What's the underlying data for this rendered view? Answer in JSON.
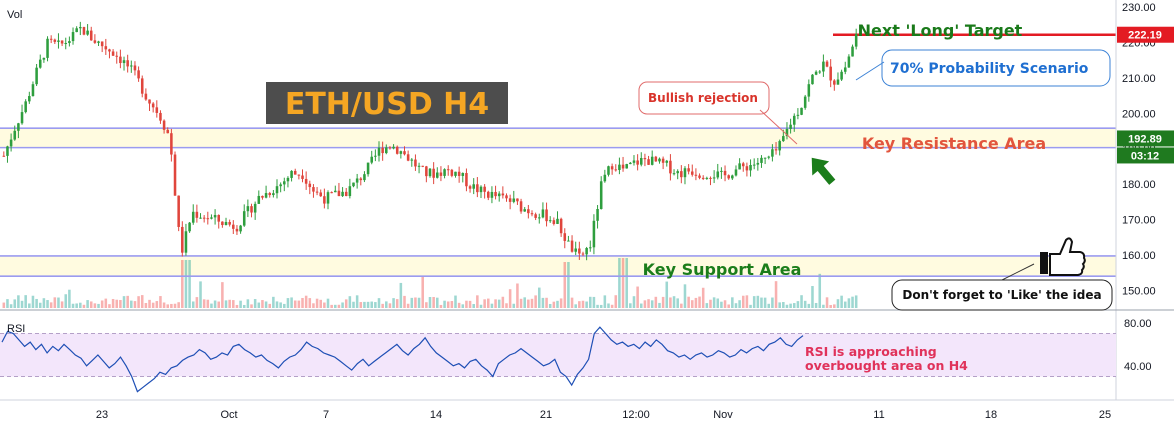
{
  "chart_data": {
    "type": "candlestick",
    "symbol_label": "ETH/USD H4",
    "volume_label": "Vol",
    "price_axis": {
      "ylim": [
        145,
        232
      ],
      "ticks": [
        "230.00",
        "220.00",
        "210.00",
        "200.00",
        "190.00",
        "180.00",
        "170.00",
        "160.00",
        "150.00"
      ],
      "tick_values": [
        230,
        220,
        210,
        200,
        190,
        180,
        170,
        160,
        150
      ]
    },
    "price_badges": [
      {
        "label": "222.19",
        "value": 222.19,
        "color": "#e31b23"
      },
      {
        "label": "192.89",
        "value": 192.89,
        "color": "#1f7a1f"
      },
      {
        "label": "03:12",
        "value": 189.6,
        "color": "#1f7a1f"
      }
    ],
    "time_axis": {
      "labels": [
        "23",
        "Oct",
        "7",
        "14",
        "21",
        "12:00",
        "Nov",
        "11",
        "18",
        "25"
      ]
    },
    "close_path": [
      [
        0,
        188
      ],
      [
        1,
        196
      ],
      [
        2,
        203
      ],
      [
        3,
        212
      ],
      [
        4,
        220
      ],
      [
        5,
        219
      ],
      [
        6,
        221
      ],
      [
        7,
        224
      ],
      [
        8,
        221
      ],
      [
        9,
        219
      ],
      [
        10,
        217
      ],
      [
        11,
        214
      ],
      [
        12,
        210
      ],
      [
        13,
        204
      ],
      [
        14,
        200
      ],
      [
        15,
        193
      ],
      [
        16,
        160
      ],
      [
        17,
        172
      ],
      [
        18,
        171
      ],
      [
        19,
        170
      ],
      [
        20,
        169
      ],
      [
        21,
        168
      ],
      [
        22,
        172
      ],
      [
        23,
        176
      ],
      [
        24,
        178
      ],
      [
        25,
        180
      ],
      [
        26,
        183
      ],
      [
        27,
        183
      ],
      [
        28,
        178
      ],
      [
        29,
        176
      ],
      [
        30,
        177
      ],
      [
        31,
        178
      ],
      [
        32,
        181
      ],
      [
        33,
        185
      ],
      [
        34,
        190
      ],
      [
        35,
        191
      ],
      [
        36,
        189
      ],
      [
        37,
        186
      ],
      [
        38,
        183
      ],
      [
        39,
        183
      ],
      [
        40,
        184
      ],
      [
        41,
        183
      ],
      [
        42,
        180
      ],
      [
        43,
        178
      ],
      [
        44,
        177
      ],
      [
        45,
        176
      ],
      [
        46,
        175
      ],
      [
        47,
        173
      ],
      [
        48,
        172
      ],
      [
        49,
        171
      ],
      [
        50,
        169
      ],
      [
        51,
        163
      ],
      [
        52,
        159
      ],
      [
        53,
        163
      ],
      [
        54,
        180
      ],
      [
        55,
        186
      ],
      [
        56,
        184
      ],
      [
        57,
        186
      ],
      [
        58,
        187
      ],
      [
        59,
        186
      ],
      [
        60,
        185
      ],
      [
        61,
        183
      ],
      [
        62,
        184
      ],
      [
        63,
        183
      ],
      [
        64,
        183
      ],
      [
        65,
        182
      ],
      [
        66,
        184
      ],
      [
        67,
        185
      ],
      [
        68,
        186
      ],
      [
        69,
        187
      ],
      [
        70,
        190
      ],
      [
        71,
        197
      ],
      [
        72,
        202
      ],
      [
        73,
        210
      ],
      [
        74,
        214
      ],
      [
        75,
        209
      ],
      [
        76,
        213
      ],
      [
        77,
        222
      ]
    ],
    "candle_range": {
      "x_start": 2,
      "x_end": 858,
      "count": 235
    },
    "horizontal_lines": [
      {
        "value": 195.8,
        "color": "#9b9bf0"
      },
      {
        "value": 190.3,
        "color": "#9b9bf0"
      },
      {
        "value": 159.7,
        "color": "#9b9bf0"
      },
      {
        "value": 154.0,
        "color": "#9b9bf0"
      },
      {
        "value": 222.19,
        "color": "#e31b23"
      }
    ],
    "zones": [
      {
        "from": 190.3,
        "to": 195.8,
        "color": "#fffbe0"
      },
      {
        "from": 154.0,
        "to": 159.7,
        "color": "#fffbe0"
      }
    ],
    "rsi": {
      "label": "RSI",
      "ticks": [
        "80.00",
        "40.00"
      ],
      "tick_values": [
        80,
        40
      ],
      "ylim": [
        10,
        90
      ],
      "band": [
        30,
        70
      ],
      "values": [
        62,
        72,
        70,
        64,
        58,
        62,
        55,
        60,
        52,
        58,
        54,
        60,
        55,
        50,
        47,
        40,
        45,
        50,
        44,
        38,
        42,
        48,
        40,
        30,
        16,
        20,
        24,
        28,
        34,
        32,
        38,
        40,
        45,
        48,
        50,
        55,
        52,
        46,
        48,
        52,
        50,
        58,
        60,
        55,
        52,
        48,
        50,
        45,
        42,
        38,
        44,
        48,
        50,
        55,
        62,
        58,
        56,
        52,
        50,
        48,
        44,
        40,
        36,
        42,
        46,
        40,
        44,
        48,
        52,
        56,
        60,
        54,
        50,
        56,
        60,
        66,
        58,
        52,
        48,
        44,
        40,
        42,
        38,
        44,
        46,
        40,
        36,
        30,
        42,
        46,
        50,
        52,
        56,
        52,
        48,
        44,
        40,
        42,
        46,
        34,
        30,
        22,
        32,
        38,
        46,
        70,
        76,
        70,
        64,
        60,
        62,
        58,
        60,
        56,
        62,
        58,
        64,
        60,
        54,
        52,
        48,
        50,
        46,
        50,
        52,
        48,
        50,
        54,
        52,
        48,
        50,
        55,
        52,
        56,
        58,
        54,
        60,
        62,
        66,
        60,
        58,
        64,
        68
      ]
    },
    "annotations": {
      "next_target": "Next 'Long' Target",
      "probability": "70% Probability Scenario",
      "bullish_rejection": "Bullish rejection",
      "key_resistance": "Key Resistance Area",
      "key_support": "Key Support Area",
      "like_note": "Don't forget to 'Like' the idea",
      "rsi_note_line1": "RSI is approaching",
      "rsi_note_line2": "overbought area on H4"
    },
    "colors": {
      "up": "#26a69a",
      "down": "#ef5350",
      "up_candle": "#2e9e3e",
      "down_candle": "#e0453c",
      "rsi_line": "#1e4fb5",
      "rsi_band": "#f3e6fb",
      "resistance_text": "#e2553d",
      "support_text": "#1b7d1b",
      "target_text": "#1a7a1a",
      "probability_text": "#1f6fd1",
      "rejection_text": "#d9342b",
      "rsi_note_text": "#e0325a",
      "title_bg": "#4d4d4d",
      "title_text": "#f5a623"
    }
  }
}
